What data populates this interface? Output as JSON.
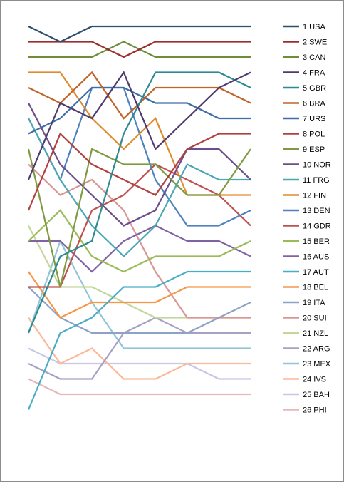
{
  "chart_data": {
    "type": "line",
    "title": "",
    "xlabel": "",
    "ylabel": "",
    "x": [
      1,
      2,
      3,
      4,
      5,
      6,
      7,
      8
    ],
    "ylim": [
      1,
      26
    ],
    "y_inverted": true,
    "grid": false,
    "legend_position": "right",
    "series": [
      {
        "name": "1 USA",
        "color": "#2f4f6f",
        "values": [
          1,
          2,
          1,
          1,
          1,
          1,
          1,
          1
        ]
      },
      {
        "name": "2 SWE",
        "color": "#9b2d2a",
        "values": [
          2,
          2,
          2,
          3,
          2,
          2,
          2,
          2
        ]
      },
      {
        "name": "3 CAN",
        "color": "#6e8d38",
        "values": [
          3,
          3,
          3,
          2,
          3,
          3,
          3,
          3
        ]
      },
      {
        "name": "4 FRA",
        "color": "#4f3a6e",
        "values": [
          11,
          6,
          7,
          4,
          9,
          7,
          5,
          4
        ]
      },
      {
        "name": "5 GBR",
        "color": "#2e8a92",
        "values": [
          21,
          16,
          15,
          8,
          4,
          4,
          4,
          5
        ]
      },
      {
        "name": "6 BRA",
        "color": "#c0652a",
        "values": [
          5,
          6,
          4,
          7,
          5,
          5,
          5,
          6
        ]
      },
      {
        "name": "7 URS",
        "color": "#3e6ea8",
        "values": [
          8,
          7,
          5,
          5,
          6,
          6,
          7,
          7
        ]
      },
      {
        "name": "8 POL",
        "color": "#b0413e",
        "values": [
          13,
          8,
          10,
          11,
          12,
          9,
          8,
          8
        ]
      },
      {
        "name": "9 ESP",
        "color": "#7f9a42",
        "values": [
          9,
          18,
          9,
          10,
          10,
          12,
          12,
          9
        ]
      },
      {
        "name": "10 NOR",
        "color": "#6b4f8c",
        "values": [
          6,
          10,
          12,
          14,
          13,
          9,
          9,
          11
        ]
      },
      {
        "name": "11 FRG",
        "color": "#4aa7b5",
        "values": [
          7,
          11,
          14,
          16,
          14,
          10,
          11,
          11
        ]
      },
      {
        "name": "12 FIN",
        "color": "#e08b2e",
        "values": [
          4,
          4,
          7,
          9,
          7,
          12,
          12,
          12
        ]
      },
      {
        "name": "13 DEN",
        "color": "#4f81bd",
        "values": [
          7,
          11,
          5,
          5,
          11,
          14,
          14,
          13
        ]
      },
      {
        "name": "14 GDR",
        "color": "#c0504d",
        "values": [
          18,
          18,
          13,
          12,
          10,
          11,
          12,
          14
        ]
      },
      {
        "name": "15 BER",
        "color": "#9bbb59",
        "values": [
          15,
          13,
          16,
          17,
          16,
          16,
          16,
          15
        ]
      },
      {
        "name": "16 AUS",
        "color": "#8064a2",
        "values": [
          15,
          15,
          17,
          15,
          14,
          15,
          15,
          16
        ]
      },
      {
        "name": "17 AUT",
        "color": "#4bacc6",
        "values": [
          26,
          21,
          20,
          18,
          18,
          17,
          17,
          17
        ]
      },
      {
        "name": "18 BEL",
        "color": "#f79646",
        "values": [
          17,
          20,
          19,
          19,
          19,
          18,
          18,
          18
        ]
      },
      {
        "name": "19 ITA",
        "color": "#8ea2c6",
        "values": [
          18,
          20,
          21,
          21,
          21,
          21,
          20,
          19
        ]
      },
      {
        "name": "20 SUI",
        "color": "#d99694",
        "values": [
          10,
          12,
          11,
          13,
          17,
          20,
          20,
          20
        ]
      },
      {
        "name": "21 NZL",
        "color": "#c3d69b",
        "values": [
          14,
          18,
          18,
          19,
          20,
          20,
          20,
          20
        ]
      },
      {
        "name": "22 ARG",
        "color": "#a6a0c4",
        "values": [
          23,
          24,
          24,
          21,
          20,
          21,
          21,
          21
        ]
      },
      {
        "name": "23 MEX",
        "color": "#92c5d8",
        "values": [
          21,
          15,
          19,
          22,
          22,
          22,
          22,
          22
        ]
      },
      {
        "name": "24 IVS",
        "color": "#fab99a",
        "values": [
          20,
          23,
          22,
          24,
          24,
          23,
          23,
          23
        ]
      },
      {
        "name": "25 BAH",
        "color": "#c8c8e6",
        "values": [
          22,
          23,
          23,
          23,
          23,
          23,
          24,
          24
        ]
      },
      {
        "name": "26 PHI",
        "color": "#e6b9b8",
        "values": [
          24,
          25,
          25,
          25,
          25,
          25,
          25,
          25
        ]
      }
    ]
  }
}
